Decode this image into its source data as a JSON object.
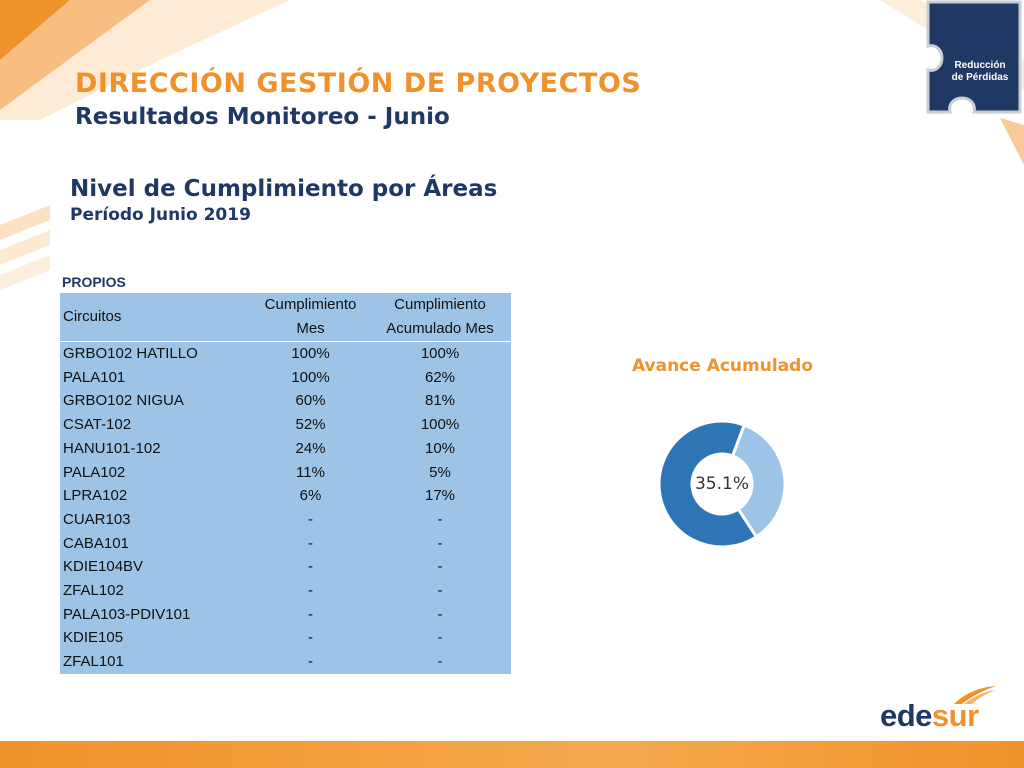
{
  "header": {
    "title": "DIRECCIÓN GESTIÓN DE PROYECTOS",
    "subtitle": "Resultados Monitoreo - Junio"
  },
  "badge": {
    "line1": "Reducción",
    "line2": "de Pérdidas"
  },
  "section": {
    "title": "Nivel de Cumplimiento por Áreas",
    "subtitle": "Período Junio 2019"
  },
  "table": {
    "caption": "PROPIOS",
    "headers": {
      "col1": "Circuitos",
      "col2_line1": "Cumplimiento",
      "col2_line2": "Mes",
      "col3_line1": "Cumplimiento",
      "col3_line2": "Acumulado Mes"
    },
    "rows": [
      {
        "circuito": "GRBO102 HATILLO",
        "mes": "100%",
        "acumulado": "100%"
      },
      {
        "circuito": "PALA101",
        "mes": "100%",
        "acumulado": "62%"
      },
      {
        "circuito": "GRBO102 NIGUA",
        "mes": "60%",
        "acumulado": "81%"
      },
      {
        "circuito": "CSAT-102",
        "mes": "52%",
        "acumulado": "100%"
      },
      {
        "circuito": "HANU101-102",
        "mes": "24%",
        "acumulado": "10%"
      },
      {
        "circuito": "PALA102",
        "mes": "11%",
        "acumulado": "5%"
      },
      {
        "circuito": "LPRA102",
        "mes": "6%",
        "acumulado": "17%"
      },
      {
        "circuito": "CUAR103",
        "mes": "-",
        "acumulado": "-"
      },
      {
        "circuito": "CABA101",
        "mes": "-",
        "acumulado": "-"
      },
      {
        "circuito": "KDIE104BV",
        "mes": "-",
        "acumulado": "-"
      },
      {
        "circuito": "ZFAL102",
        "mes": "-",
        "acumulado": "-"
      },
      {
        "circuito": "PALA103-PDIV101",
        "mes": "-",
        "acumulado": "-"
      },
      {
        "circuito": "KDIE105",
        "mes": "-",
        "acumulado": "-"
      },
      {
        "circuito": "ZFAL101",
        "mes": "-",
        "acumulado": "-"
      }
    ]
  },
  "chart_data": {
    "type": "pie",
    "title": "Avance Acumulado",
    "center_label": "35.1%",
    "slices": [
      {
        "value": 35.1,
        "color": "#9dc3e6"
      },
      {
        "value": 64.9,
        "color": "#2e75b6"
      }
    ]
  },
  "logo": {
    "part1": "ede",
    "part2": "sur"
  },
  "colors": {
    "accent": "#f0922b",
    "navy": "#1f3864",
    "table_bg": "#9dc3e6",
    "donut_dark": "#2e75b6",
    "donut_light": "#9dc3e6"
  }
}
